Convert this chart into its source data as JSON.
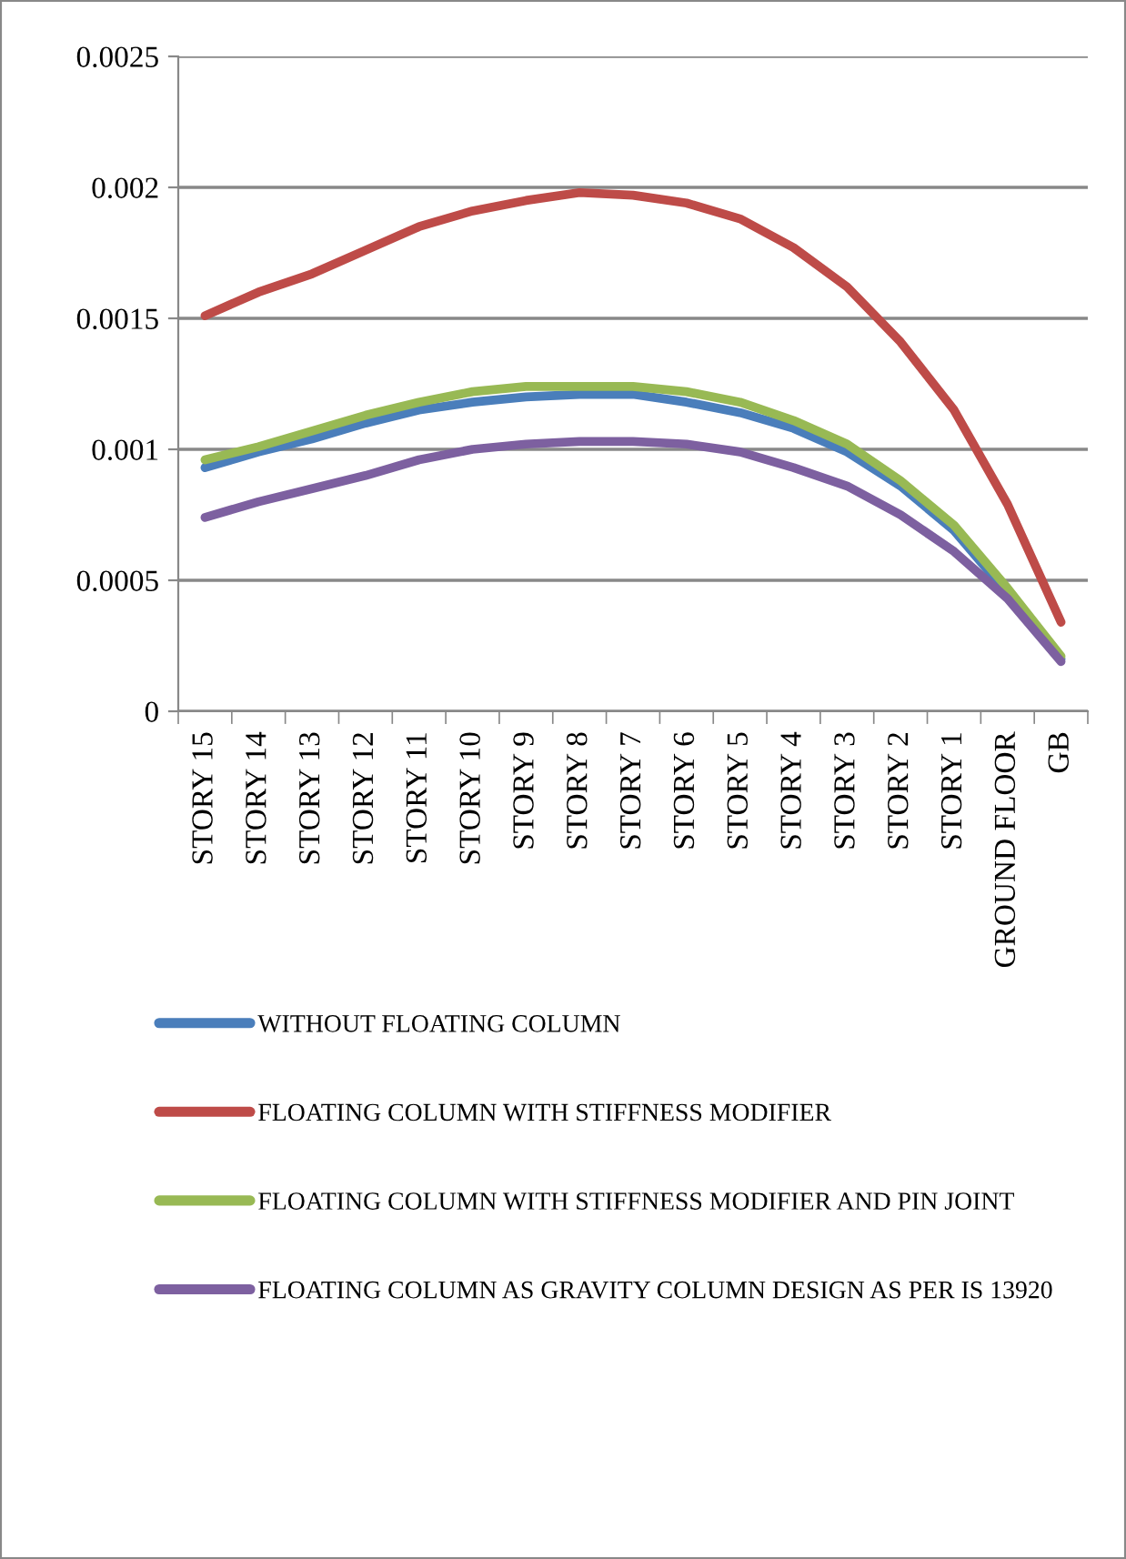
{
  "chart_data": {
    "type": "line",
    "categories": [
      "STORY 15",
      "STORY 14",
      "STORY 13",
      "STORY 12",
      "STORY 11",
      "STORY 10",
      "STORY 9",
      "STORY 8",
      "STORY 7",
      "STORY 6",
      "STORY 5",
      "STORY 4",
      "STORY 3",
      "STORY 2",
      "STORY 1",
      "GROUND FLOOR",
      "GB"
    ],
    "series": [
      {
        "name": "WITHOUT FLOATING COLUMN",
        "color": "#4a7ebb",
        "values": [
          0.00093,
          0.00099,
          0.00104,
          0.0011,
          0.00115,
          0.00118,
          0.0012,
          0.00121,
          0.00121,
          0.00118,
          0.00114,
          0.00108,
          0.00099,
          0.00086,
          0.00069,
          0.00045,
          0.0002
        ]
      },
      {
        "name": "FLOATING COLUMN WITH STIFFNESS MODIFIER",
        "color": "#be4b48",
        "values": [
          0.00151,
          0.0016,
          0.00167,
          0.00176,
          0.00185,
          0.00191,
          0.00195,
          0.00198,
          0.00197,
          0.00194,
          0.00188,
          0.00177,
          0.00162,
          0.00141,
          0.00115,
          0.00079,
          0.00034
        ]
      },
      {
        "name": "FLOATING COLUMN WITH STIFFNESS MODIFIER AND PIN JOINT",
        "color": "#98b954",
        "values": [
          0.00096,
          0.00101,
          0.00107,
          0.00113,
          0.00118,
          0.00122,
          0.00124,
          0.00124,
          0.00124,
          0.00122,
          0.00118,
          0.00111,
          0.00102,
          0.00088,
          0.00071,
          0.00047,
          0.00021
        ]
      },
      {
        "name": "FLOATING COLUMN AS GRAVITY COLUMN DESIGN AS PER IS 13920",
        "color": "#7d60a0",
        "values": [
          0.00074,
          0.0008,
          0.00085,
          0.0009,
          0.00096,
          0.001,
          0.00102,
          0.00103,
          0.00103,
          0.00102,
          0.00099,
          0.00093,
          0.00086,
          0.00075,
          0.00061,
          0.00043,
          0.00019
        ]
      }
    ],
    "ylim": [
      0,
      0.0025
    ],
    "yticks": [
      0,
      0.0005,
      0.001,
      0.0015,
      0.002,
      0.0025
    ],
    "grid": "y",
    "legend": "bottom",
    "marker": "none",
    "line_style": "solid"
  }
}
